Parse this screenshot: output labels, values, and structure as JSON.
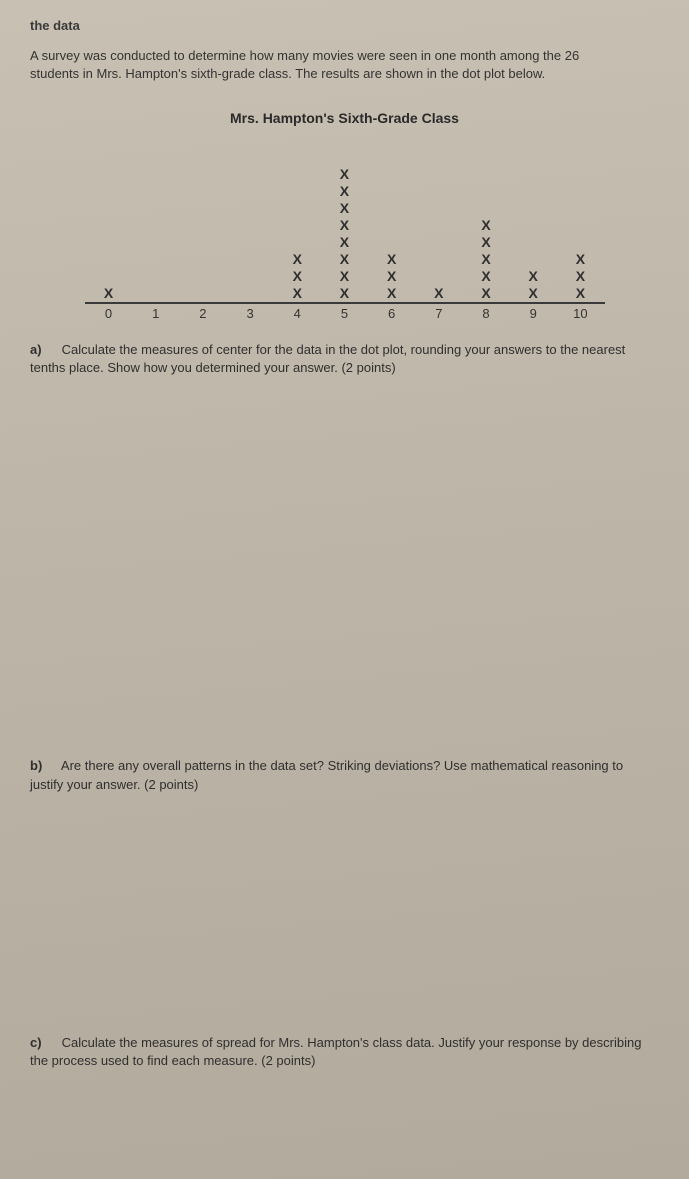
{
  "partial_top": "the data",
  "intro": "A survey was conducted to determine how many movies were seen in one month among the 26 students in Mrs. Hampton's sixth-grade class. The results are shown in the dot plot below.",
  "chart": {
    "type": "dotplot",
    "title": "Mrs. Hampton's Sixth-Grade Class",
    "categories": [
      "0",
      "1",
      "2",
      "3",
      "4",
      "5",
      "6",
      "7",
      "8",
      "9",
      "10"
    ],
    "counts": [
      1,
      0,
      0,
      0,
      3,
      8,
      3,
      1,
      5,
      2,
      3
    ],
    "mark_glyph": "X",
    "mark_color": "#2f2f2f",
    "mark_fontsize": 14,
    "axis_color": "#3a3a3a",
    "background_color": "#beb6a8",
    "tick_fontsize": 13
  },
  "questions": {
    "a": {
      "label": "a)",
      "text": "Calculate the measures of center for the data in the dot plot, rounding your answers to the nearest tenths place. Show how you determined your answer. (2 points)"
    },
    "b": {
      "label": "b)",
      "text": "Are there any overall patterns in the data set? Striking deviations? Use mathematical reasoning to justify your answer. (2 points)"
    },
    "c": {
      "label": "c)",
      "text": "Calculate the measures of spread for Mrs. Hampton's class data. Justify your response by describing the process used to find each measure. (2 points)"
    }
  }
}
